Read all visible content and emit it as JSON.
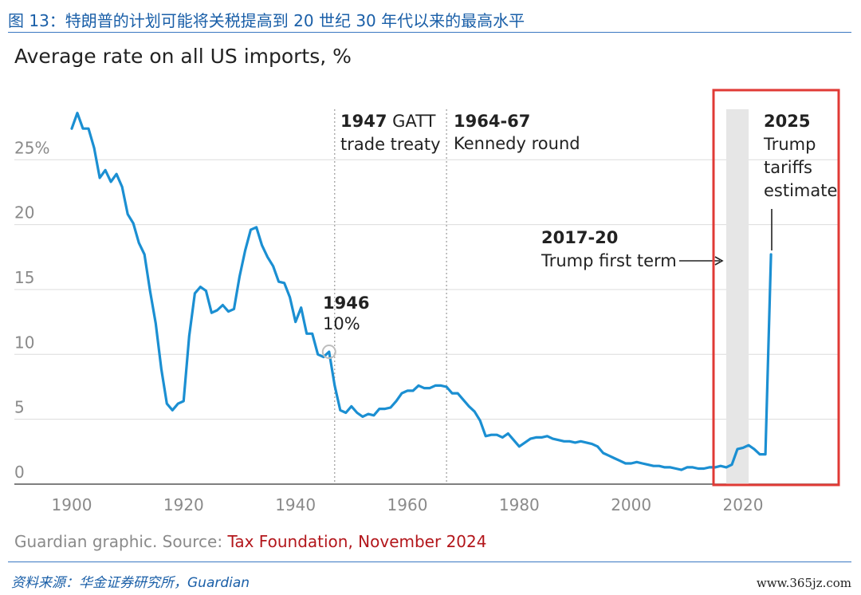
{
  "caption": "图 13：特朗普的计划可能将关税提高到 20 世纪 30 年代以来的最高水平",
  "footer": {
    "source": "资料来源：华金证券研究所，Guardian",
    "watermark": "www.365jz.com"
  },
  "colors": {
    "line": "#1b8fd2",
    "caption": "#1a5fa8",
    "highlight_box": "#e03a35",
    "shade": "#e6e6e6",
    "source_link": "#b3161b"
  },
  "chart_data": {
    "type": "line",
    "title": "Average rate on all US imports, %",
    "xlabel": "",
    "ylabel": "",
    "xlim": [
      1900,
      2025
    ],
    "ylim": [
      0,
      27
    ],
    "x_ticks": [
      "1900",
      "1920",
      "1940",
      "1960",
      "1980",
      "2000",
      "2020"
    ],
    "y_ticks": [
      "0",
      "5",
      "10",
      "15",
      "20",
      "25%"
    ],
    "grid": "horizontal",
    "shaded_region": [
      2017,
      2021
    ],
    "series": [
      {
        "x": [
          1900,
          1901,
          1902,
          1903,
          1904,
          1905,
          1906,
          1907,
          1908,
          1909,
          1910,
          1911,
          1912,
          1913,
          1914,
          1915,
          1916,
          1917,
          1918,
          1919,
          1920,
          1921,
          1922,
          1923,
          1924,
          1925,
          1926,
          1927,
          1928,
          1929,
          1930,
          1931,
          1932,
          1933,
          1934,
          1935,
          1936,
          1937,
          1938,
          1939,
          1940,
          1941,
          1942,
          1943,
          1944,
          1945,
          1946,
          1947,
          1948,
          1949,
          1950,
          1951,
          1952,
          1953,
          1954,
          1955,
          1956,
          1957,
          1958,
          1959,
          1960,
          1961,
          1962,
          1963,
          1964,
          1965,
          1966,
          1967,
          1968,
          1969,
          1970,
          1971,
          1972,
          1973,
          1974,
          1975,
          1976,
          1977,
          1978,
          1979,
          1980,
          1981,
          1982,
          1983,
          1984,
          1985,
          1986,
          1987,
          1988,
          1989,
          1990,
          1991,
          1992,
          1993,
          1994,
          1995,
          1996,
          1997,
          1998,
          1999,
          2000,
          2001,
          2002,
          2003,
          2004,
          2005,
          2006,
          2007,
          2008,
          2009,
          2010,
          2011,
          2012,
          2013,
          2014,
          2015,
          2016,
          2017,
          2018,
          2019,
          2020,
          2021,
          2022,
          2023,
          2024,
          2025
        ],
        "y": [
          27.4,
          28.6,
          27.4,
          27.4,
          25.9,
          23.6,
          24.2,
          23.3,
          23.9,
          22.9,
          20.8,
          20.1,
          18.6,
          17.7,
          14.9,
          12.4,
          8.9,
          6.2,
          5.7,
          6.2,
          6.4,
          11.4,
          14.7,
          15.2,
          14.9,
          13.2,
          13.4,
          13.8,
          13.3,
          13.5,
          16.0,
          18.0,
          19.6,
          19.8,
          18.4,
          17.5,
          16.8,
          15.6,
          15.5,
          14.4,
          12.5,
          13.6,
          11.6,
          11.6,
          10.0,
          9.8,
          10.2,
          7.6,
          5.7,
          5.5,
          6.0,
          5.5,
          5.2,
          5.4,
          5.3,
          5.8,
          5.8,
          5.9,
          6.4,
          7.0,
          7.2,
          7.2,
          7.6,
          7.4,
          7.4,
          7.6,
          7.6,
          7.5,
          7.0,
          7.0,
          6.5,
          6.0,
          5.6,
          4.9,
          3.7,
          3.8,
          3.8,
          3.6,
          3.9,
          3.4,
          2.9,
          3.2,
          3.5,
          3.6,
          3.6,
          3.7,
          3.5,
          3.4,
          3.3,
          3.3,
          3.2,
          3.3,
          3.2,
          3.1,
          2.9,
          2.4,
          2.2,
          2.0,
          1.8,
          1.6,
          1.6,
          1.7,
          1.6,
          1.5,
          1.4,
          1.4,
          1.3,
          1.3,
          1.2,
          1.1,
          1.3,
          1.3,
          1.2,
          1.2,
          1.3,
          1.3,
          1.4,
          1.3,
          1.5,
          2.7,
          2.8,
          3.0,
          2.7,
          2.3,
          2.3,
          17.7
        ]
      }
    ],
    "annotations": [
      {
        "bold": "1946",
        "text": "10%"
      },
      {
        "bold": "1947",
        "text": " GATT",
        "text2": "trade treaty"
      },
      {
        "bold": "1964-67",
        "text": "Kennedy round"
      },
      {
        "bold": "2017-20",
        "text": "Trump first term"
      },
      {
        "bold": "2025",
        "text": "Trump",
        "text2": "tariffs",
        "text3": "estimate"
      }
    ],
    "source": {
      "prefix": "Guardian graphic. Source: ",
      "link": "Tax Foundation, November 2024"
    }
  }
}
